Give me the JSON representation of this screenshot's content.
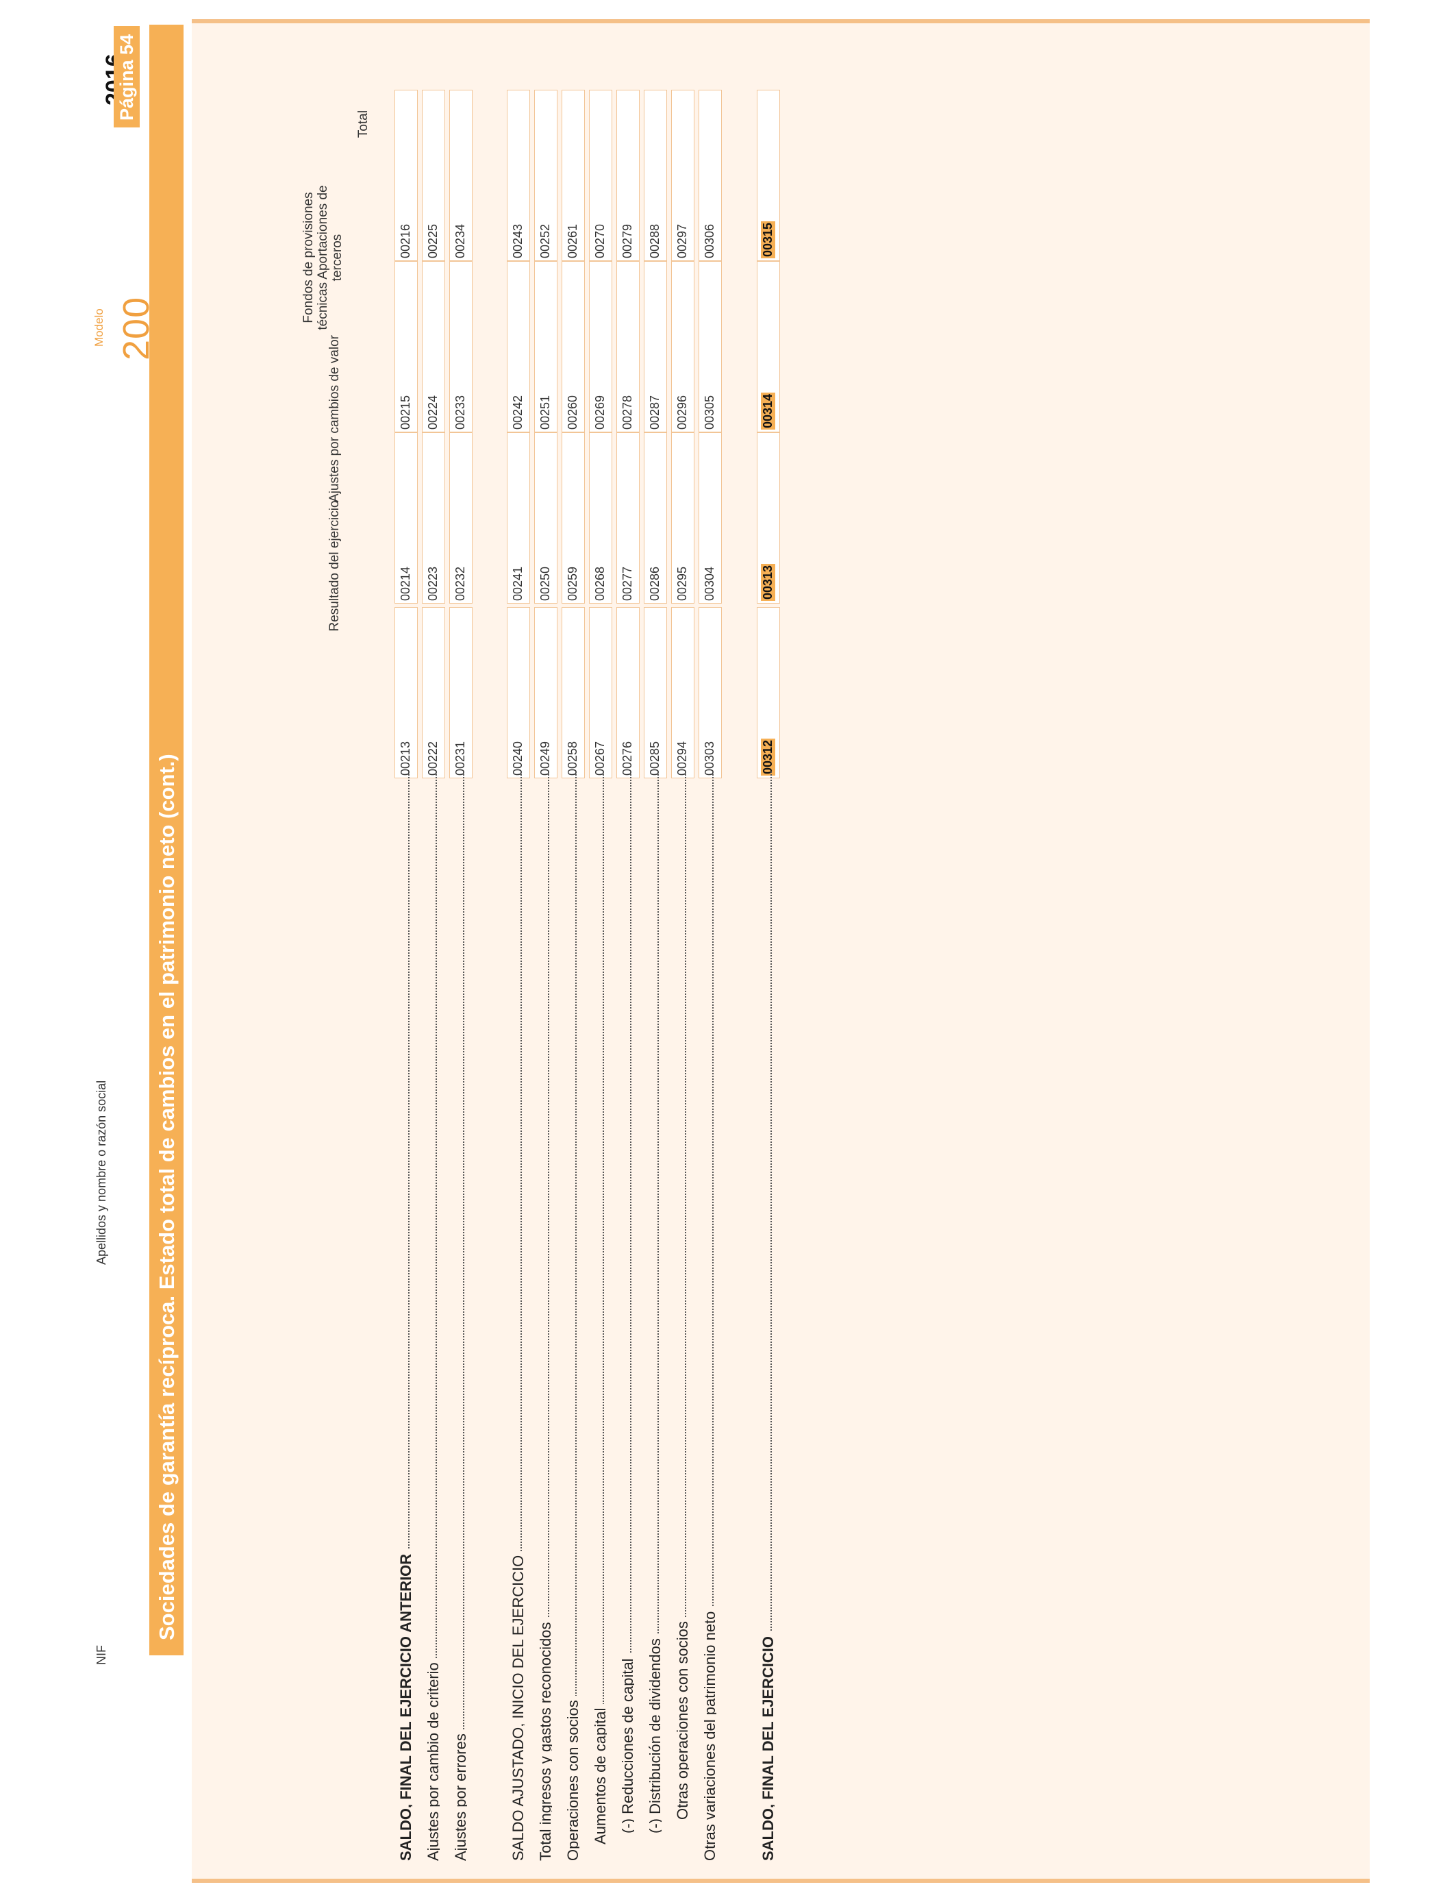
{
  "header": {
    "modelo_label": "Modelo",
    "modelo_number": "200",
    "nif_label": "NIF",
    "name_label": "Apellidos y nombre o razón social",
    "year": "2016",
    "page_label": "Página 54"
  },
  "title": "Sociedades de garantía recíproca. Estado total de cambios en el patrimonio neto (cont.)",
  "columns": [
    {
      "label": "Resultado del ejercicio"
    },
    {
      "label": "Ajustes por cambios de valor"
    },
    {
      "label": "Fondos de provisiones técnicas Aportaciones de terceros"
    },
    {
      "label": "Total"
    }
  ],
  "rows": [
    {
      "label": "SALDO, FINAL DEL EJERCICIO ANTERIOR",
      "bold": true,
      "codes": [
        "00213",
        "00214",
        "00215",
        "00216"
      ]
    },
    {
      "label": "Ajustes por cambio de criterio",
      "codes": [
        "00222",
        "00223",
        "00224",
        "00225"
      ]
    },
    {
      "label": "Ajustes por errores",
      "codes": [
        "00231",
        "00232",
        "00233",
        "00234"
      ]
    },
    {
      "label": "SALDO AJUSTADO, INICIO DEL EJERCICIO",
      "codes": [
        "00240",
        "00241",
        "00242",
        "00243"
      ]
    },
    {
      "label": "Total ingresos y gastos reconocidos",
      "codes": [
        "00249",
        "00250",
        "00251",
        "00252"
      ]
    },
    {
      "label": "Operaciones con socios",
      "codes": [
        "00258",
        "00259",
        "00260",
        "00261"
      ]
    },
    {
      "label": "Aumentos de capital",
      "codes": [
        "00267",
        "00268",
        "00269",
        "00270"
      ]
    },
    {
      "label": "(-) Reducciones de capital",
      "codes": [
        "00276",
        "00277",
        "00278",
        "00279"
      ]
    },
    {
      "label": "(-) Distribución de dividendos",
      "codes": [
        "00285",
        "00286",
        "00287",
        "00288"
      ]
    },
    {
      "label": "Otras operaciones con socios",
      "codes": [
        "00294",
        "00295",
        "00296",
        "00297"
      ]
    },
    {
      "label": "Otras variaciones del patrimonio neto",
      "codes": [
        "00303",
        "00304",
        "00305",
        "00306"
      ]
    },
    {
      "label": "SALDO, FINAL DEL EJERCICIO",
      "bold": true,
      "highlight": true,
      "codes": [
        "00312",
        "00313",
        "00314",
        "00315"
      ]
    }
  ]
}
